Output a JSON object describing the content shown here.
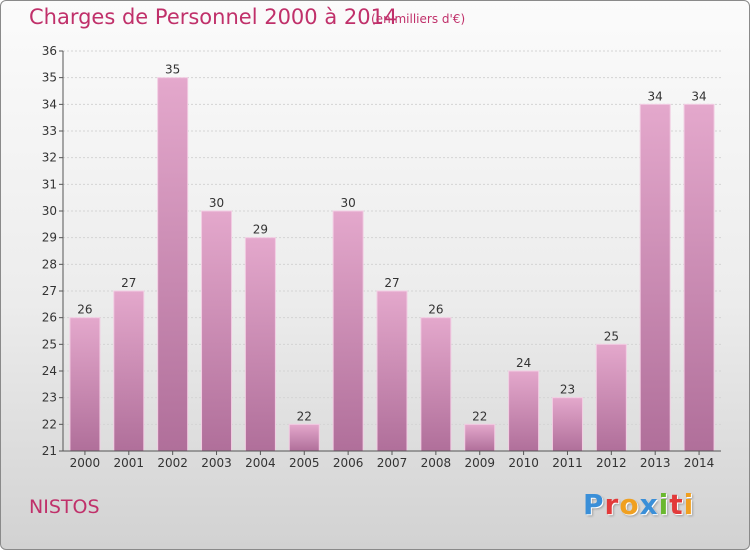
{
  "header": {
    "title": "Charges de Personnel 2000 à 2014",
    "subtitle": "(en milliers d'€)"
  },
  "footer": {
    "commune": "NISTOS",
    "brand_letters": [
      {
        "ch": "P",
        "color": "#3a8fd8"
      },
      {
        "ch": "r",
        "color": "#e23a3a"
      },
      {
        "ch": "o",
        "color": "#f0a020"
      },
      {
        "ch": "x",
        "color": "#3a8fd8"
      },
      {
        "ch": "i",
        "color": "#6ab82e"
      },
      {
        "ch": "t",
        "color": "#e23a3a"
      },
      {
        "ch": "i",
        "color": "#f0a020"
      }
    ]
  },
  "colors": {
    "bar_top": "#e4a8cc",
    "bar_bottom": "#b06f9a",
    "title": "#c0306a"
  },
  "chart_data": {
    "type": "bar",
    "title": "Charges de Personnel 2000 à 2014",
    "subtitle": "(en milliers d'€)",
    "xlabel": "",
    "ylabel": "",
    "categories": [
      "2000",
      "2001",
      "2002",
      "2003",
      "2004",
      "2005",
      "2006",
      "2007",
      "2008",
      "2009",
      "2010",
      "2011",
      "2012",
      "2013",
      "2014"
    ],
    "values": [
      26,
      27,
      35,
      30,
      29,
      22,
      30,
      27,
      26,
      22,
      24,
      23,
      25,
      34,
      34
    ],
    "ylim": [
      21,
      36
    ],
    "yticks": [
      21,
      22,
      23,
      24,
      25,
      26,
      27,
      28,
      29,
      30,
      31,
      32,
      33,
      34,
      35,
      36
    ],
    "grid": true,
    "data_labels": true
  }
}
